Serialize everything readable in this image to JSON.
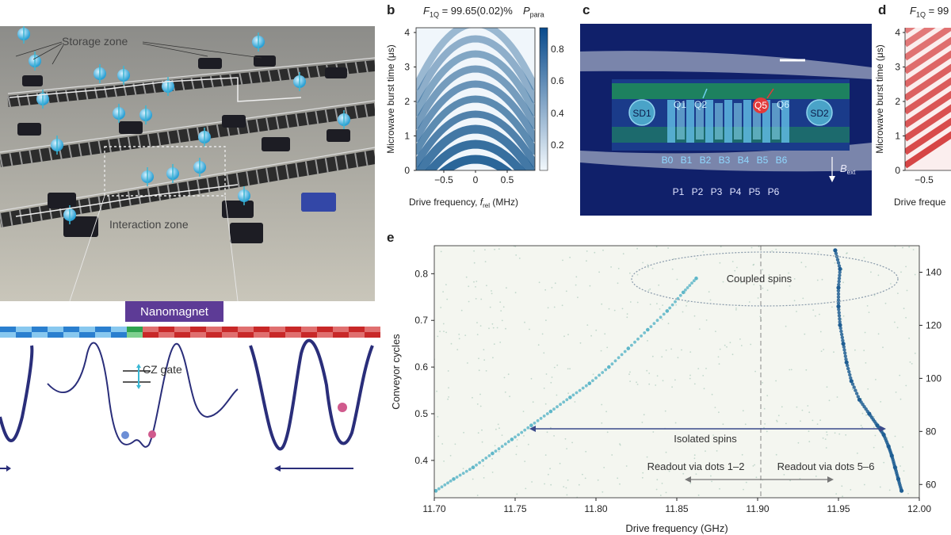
{
  "panel_a": {
    "storage_zone_label": "Storage zone",
    "interaction_zone_label": "Interaction zone",
    "nanomagnet_label": "Nanomagnet",
    "cz_gate_label": "CZ gate"
  },
  "panel_b": {
    "letter": "b",
    "fidelity_label": "F",
    "fidelity_sub": "1Q",
    "fidelity_value": " = 99.65(0.02)%",
    "colorbar_label": "P",
    "colorbar_sub": "para",
    "ylabel": "Microwave burst time (μs)",
    "xlabel_prefix": "Drive frequency, ",
    "xlabel_var": "f",
    "xlabel_sub": "rel",
    "xlabel_unit": " (MHz)",
    "yticks": [
      "0",
      "1",
      "2",
      "3",
      "4"
    ],
    "xticks": [
      "−0.5",
      "0",
      "0.5"
    ],
    "cbar_ticks": [
      "0.2",
      "0.4",
      "0.6",
      "0.8"
    ]
  },
  "panel_c": {
    "letter": "c",
    "sd1": "SD1",
    "sd2": "SD2",
    "qubits": [
      "Q1",
      "Q2",
      "Q5",
      "Q6"
    ],
    "barriers": [
      "B0",
      "B1",
      "B2",
      "B3",
      "B4",
      "B5",
      "B6"
    ],
    "plungers": [
      "P1",
      "P2",
      "P3",
      "P4",
      "P5",
      "P6"
    ],
    "field_label": "B",
    "field_sub": "ext"
  },
  "panel_d": {
    "letter": "d",
    "fidelity_prefix": "F",
    "fidelity_sub": "1Q",
    "fidelity_partial": " = 99",
    "ylabel": "Microwave burst time (μs)",
    "yticks": [
      "0",
      "1",
      "2",
      "3",
      "4"
    ],
    "xtick_partial": "−0.5",
    "xlabel_partial": "Drive freque"
  },
  "panel_e": {
    "letter": "e",
    "ylabel": "Conveyor cycles",
    "xlabel": "Drive frequency (GHz)",
    "xticks": [
      "11.70",
      "11.75",
      "11.80",
      "11.85",
      "11.90",
      "11.95",
      "12.00"
    ],
    "yticks_left": [
      "0.4",
      "0.5",
      "0.6",
      "0.7",
      "0.8"
    ],
    "yticks_right": [
      "60",
      "80",
      "100",
      "120",
      "140"
    ],
    "coupled_label": "Coupled spins",
    "isolated_label": "Isolated spins",
    "readout_left": "Readout via dots 1–2",
    "readout_right": "Readout via dots 5–6"
  },
  "chart_data": [
    {
      "panel": "e",
      "type": "scatter",
      "xlabel": "Drive frequency (GHz)",
      "ylabel": "Conveyor cycles",
      "xlim": [
        11.7,
        12.0
      ],
      "ylim_left": [
        0.32,
        0.86
      ],
      "ylim_right": [
        55,
        150
      ],
      "series": [
        {
          "name": "",
          "color": "#5fb7c9",
          "x": [
            11.701,
            11.712,
            11.724,
            11.736,
            11.748,
            11.76,
            11.772,
            11.784,
            11.796,
            11.808,
            11.82,
            11.832,
            11.844,
            11.854,
            11.862
          ],
          "y": [
            0.335,
            0.36,
            0.385,
            0.415,
            0.445,
            0.475,
            0.505,
            0.535,
            0.565,
            0.6,
            0.64,
            0.68,
            0.72,
            0.76,
            0.79
          ]
        },
        {
          "name": "",
          "color": "#1f5e93",
          "x": [
            11.989,
            11.987,
            11.985,
            11.983,
            11.981,
            11.978,
            11.974,
            11.969,
            11.963,
            11.958,
            11.955,
            11.953,
            11.951,
            11.95,
            11.95,
            11.951,
            11.948
          ],
          "y": [
            0.335,
            0.36,
            0.385,
            0.41,
            0.43,
            0.455,
            0.475,
            0.5,
            0.53,
            0.57,
            0.61,
            0.65,
            0.69,
            0.73,
            0.77,
            0.81,
            0.85
          ]
        }
      ],
      "annotations": [
        "Coupled spins",
        "Isolated spins",
        "Readout via dots 1–2",
        "Readout via dots 5–6"
      ]
    }
  ],
  "colors": {
    "blue_accent": "#1f5e93",
    "cyan": "#5fb7c9",
    "red": "#d23232",
    "purple": "#5d3b96",
    "navy": "#2a2e7a"
  }
}
